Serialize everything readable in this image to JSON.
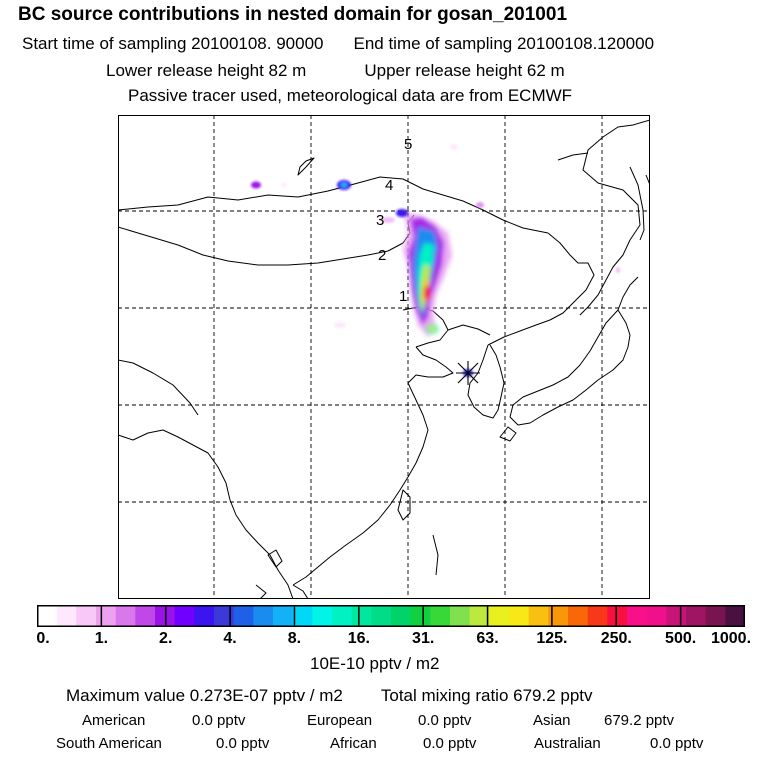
{
  "header": {
    "title": "BC  source contributions in nested domain for gosan_201001",
    "start_label": "Start time of sampling 20100108. 90000",
    "end_label": "End time of sampling 20100108.120000",
    "lower_label": "Lower release height   82 m",
    "upper_label": "Upper release height   62 m",
    "passive_label": "Passive tracer used, meteorological data are from ECMWF"
  },
  "map": {
    "trajectory_labels": [
      "1",
      "2",
      "3",
      "4",
      "5"
    ],
    "receptor_marker": "star-icon"
  },
  "colorbar": {
    "ticks": [
      "0.",
      "1.",
      "2.",
      "4.",
      "8.",
      "16.",
      "31.",
      "63.",
      "125.",
      "250.",
      "500.",
      "1000."
    ],
    "unit": "10E-10 pptv / m2",
    "colors": [
      "#ffffff",
      "#fde8fd",
      "#f8c8f8",
      "#eda2f0",
      "#d878ea",
      "#c048e8",
      "#9a12e8",
      "#7000ff",
      "#3c14f0",
      "#3a3ad8",
      "#1e60e8",
      "#1a8cf0",
      "#14b0f8",
      "#00d8f8",
      "#00f4e8",
      "#00f2c4",
      "#00e8a0",
      "#00dc88",
      "#00d468",
      "#10d040",
      "#38d838",
      "#80e050",
      "#bce840",
      "#e8f020",
      "#f8e818",
      "#f8c010",
      "#f89808",
      "#f86808",
      "#f83818",
      "#f81040",
      "#f8108a",
      "#f0108c",
      "#c81478",
      "#a01464",
      "#781450",
      "#4a1040"
    ]
  },
  "summary": {
    "max_label": "Maximum value  0.273E-07 pptv / m2",
    "total_label": "Total mixing ratio     679.2 pptv"
  },
  "regions": [
    {
      "name": "American",
      "value": "0.0 pptv"
    },
    {
      "name": "European",
      "value": "0.0 pptv"
    },
    {
      "name": "Asian",
      "value": "679.2 pptv"
    },
    {
      "name": "South American",
      "value": "0.0 pptv"
    },
    {
      "name": "African",
      "value": "0.0 pptv"
    },
    {
      "name": "Australian",
      "value": "0.0 pptv"
    }
  ]
}
